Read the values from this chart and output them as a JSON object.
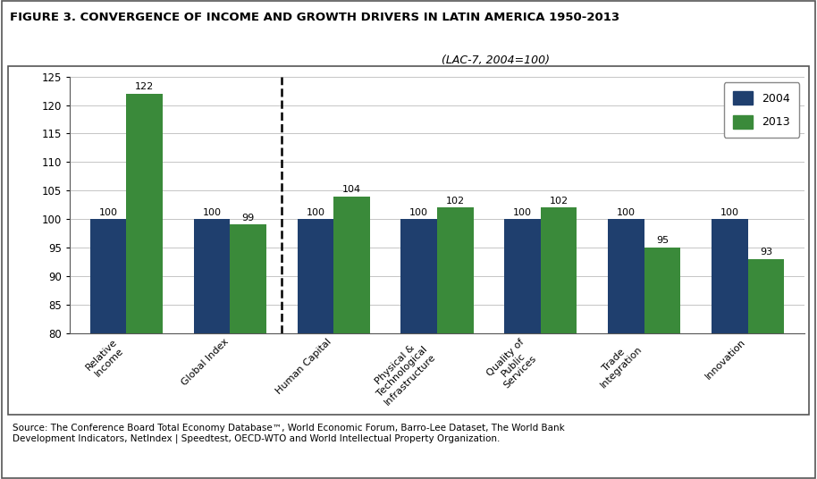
{
  "title": "FIGURE 3. CONVERGENCE OF INCOME AND GROWTH DRIVERS IN LATIN AMERICA 1950-2013",
  "subtitle": "(LAC-7, 2004=100)",
  "categories": [
    "Relative\nIncome",
    "Global Index",
    "Human Capital",
    "Physical &\nTechnological\nInfrastructure",
    "Quality of\nPublic\nServices",
    "Trade\nIntegration",
    "Innovation"
  ],
  "values_2004": [
    100,
    100,
    100,
    100,
    100,
    100,
    100
  ],
  "values_2013": [
    122,
    99,
    104,
    102,
    102,
    95,
    93
  ],
  "color_2004": "#1f3f6e",
  "color_2013": "#3a8a3a",
  "ylim": [
    80,
    125
  ],
  "yticks": [
    80,
    85,
    90,
    95,
    100,
    105,
    110,
    115,
    120,
    125
  ],
  "bar_width": 0.35,
  "source_text": "Source: The Conference Board Total Economy Database™, World Economic Forum, Barro-Lee Dataset, The World Bank\nDevelopment Indicators, NetIndex | Speedtest, OECD-WTO and World Intellectual Property Organization.",
  "legend_labels": [
    "2004",
    "2013"
  ],
  "figure_bg": "#ffffff",
  "plot_bg": "#ffffff"
}
